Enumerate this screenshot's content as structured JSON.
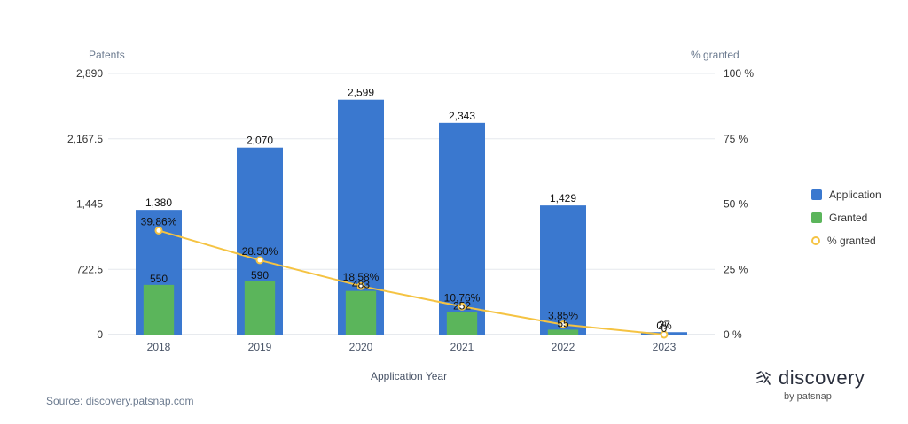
{
  "chart_data": {
    "type": "bar",
    "categories": [
      "2018",
      "2019",
      "2020",
      "2021",
      "2022",
      "2023"
    ],
    "series": [
      {
        "name": "Application",
        "type": "bar",
        "axis": "left",
        "values": [
          1380,
          2070,
          2599,
          2343,
          1429,
          27
        ],
        "labels": [
          "1,380",
          "2,070",
          "2,599",
          "2,343",
          "1,429",
          "27"
        ]
      },
      {
        "name": "Granted",
        "type": "bar",
        "axis": "left",
        "values": [
          550,
          590,
          483,
          252,
          55,
          0
        ],
        "labels": [
          "550",
          "590",
          "483",
          "252",
          "55",
          "0"
        ]
      },
      {
        "name": "% granted",
        "type": "line",
        "axis": "right",
        "values": [
          39.86,
          28.5,
          18.58,
          10.76,
          3.85,
          0
        ],
        "labels": [
          "39.86%",
          "28.50%",
          "18.58%",
          "10.76%",
          "3.85%",
          "0%"
        ]
      }
    ],
    "xlabel": "Application Year",
    "ylabel": "Patents",
    "ylabel_right": "% granted",
    "ylim": [
      0,
      2890
    ],
    "ylim_right": [
      0,
      100
    ],
    "yticks": [
      "0",
      "722.5",
      "1,445",
      "2,167.5",
      "2,890"
    ],
    "yticks_right": [
      "0 %",
      "25 %",
      "50 %",
      "75 %",
      "100 %"
    ],
    "grid": true,
    "legend_position": "right"
  },
  "colors": {
    "application": "#3a78cf",
    "granted": "#5bb55b",
    "percent_line": "#f5c342",
    "grid": "#e6e9ee",
    "axis_text": "#6b7a8f"
  },
  "legend": {
    "application": "Application",
    "granted": "Granted",
    "percent": "% granted"
  },
  "source": "Source: discovery.patsnap.com",
  "logo": {
    "main": "discovery",
    "sub": "by patsnap"
  }
}
